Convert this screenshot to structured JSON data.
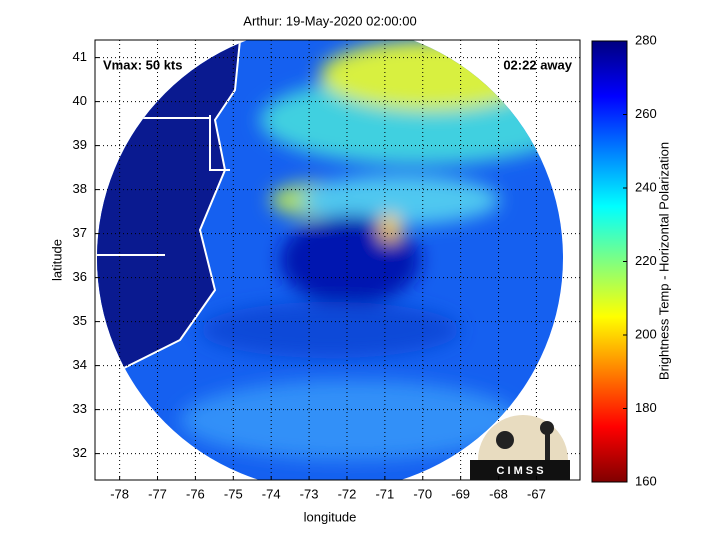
{
  "title": "Arthur: 19-May-2020 02:00:00",
  "xlabel": "longitude",
  "ylabel": "latitude",
  "xlim": [
    -78.65,
    -65.85
  ],
  "xticks": [
    -78,
    -77,
    -76,
    -75,
    -74,
    -73,
    -72,
    -71,
    -70,
    -69,
    -68,
    -67
  ],
  "ylim": [
    31.4,
    41.4
  ],
  "yticks": [
    32,
    33,
    34,
    35,
    36,
    37,
    38,
    39,
    40,
    41
  ],
  "grid": true,
  "annotations": [
    "Vmax: 50 kts",
    "02:22 away"
  ],
  "logo": "C I M S S",
  "colorbar": {
    "label": "Brightness Temp - Horizontal Polarization",
    "lim": [
      160,
      280
    ],
    "ticks": [
      160,
      180,
      200,
      220,
      240,
      260,
      280
    ],
    "colors": [
      "#800000",
      "#ff0000",
      "#ff8000",
      "#ffff00",
      "#80ff80",
      "#00ffff",
      "#0080ff",
      "#0000ff",
      "#000080"
    ]
  }
}
